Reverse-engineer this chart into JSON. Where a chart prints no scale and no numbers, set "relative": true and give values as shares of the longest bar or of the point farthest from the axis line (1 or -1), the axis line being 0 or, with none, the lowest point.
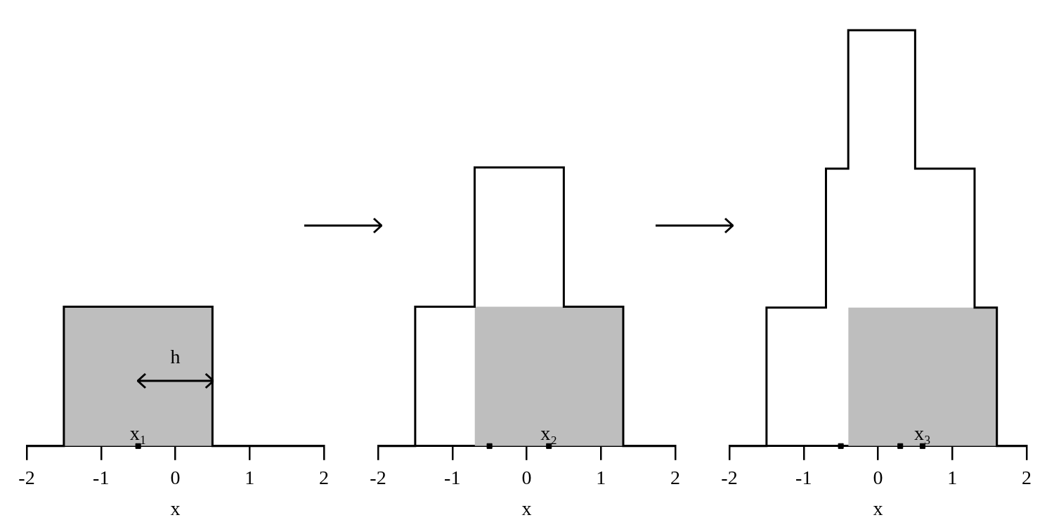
{
  "chart_data": [
    {
      "type": "step",
      "relative": true,
      "xlabel": "x",
      "xlim": [
        -2,
        2
      ],
      "xticks": [
        -2,
        -1,
        0,
        1,
        2
      ],
      "series": [
        {
          "type": "area",
          "color": "#bebebe",
          "x": [
            -1.5,
            0.5
          ],
          "values": [
            1,
            1
          ]
        },
        {
          "color": "#000000",
          "x": [
            -2,
            -1.5,
            0.5,
            2
          ],
          "values": [
            0,
            1,
            0,
            0
          ]
        },
        {
          "type": "scatter",
          "color": "#000000",
          "x": [
            -0.5
          ],
          "values": [
            0
          ]
        }
      ],
      "annotations": [
        "x₁",
        "h"
      ]
    },
    {
      "type": "step",
      "relative": true,
      "xlabel": "x",
      "xlim": [
        -2,
        2
      ],
      "xticks": [
        -2,
        -1,
        0,
        1,
        2
      ],
      "series": [
        {
          "type": "area",
          "color": "#bebebe",
          "x": [
            -0.7,
            1.3
          ],
          "values": [
            0.5,
            0.5
          ]
        },
        {
          "color": "#000000",
          "x": [
            -2,
            -1.5,
            -0.7,
            0.5,
            1.3,
            2
          ],
          "values": [
            0,
            0.5,
            1,
            0.5,
            0,
            0
          ]
        },
        {
          "type": "scatter",
          "color": "#000000",
          "x": [
            -0.5,
            0.3
          ],
          "values": [
            0,
            0
          ]
        }
      ],
      "annotations": [
        "x₂"
      ]
    },
    {
      "type": "step",
      "relative": true,
      "xlabel": "x",
      "xlim": [
        -2,
        2
      ],
      "xticks": [
        -2,
        -1,
        0,
        1,
        2
      ],
      "series": [
        {
          "type": "area",
          "color": "#bebebe",
          "x": [
            -0.4,
            1.6
          ],
          "values": [
            0.333,
            0.333
          ]
        },
        {
          "color": "#000000",
          "x": [
            -2,
            -1.5,
            -0.7,
            -0.4,
            0.5,
            1.3,
            1.6,
            2
          ],
          "values": [
            0,
            0.333,
            0.667,
            1,
            0.667,
            0.333,
            0,
            0
          ]
        },
        {
          "type": "scatter",
          "color": "#000000",
          "x": [
            -0.5,
            0.3,
            0.6
          ],
          "values": [
            0,
            0,
            0
          ]
        }
      ],
      "annotations": [
        "x₃"
      ]
    }
  ]
}
